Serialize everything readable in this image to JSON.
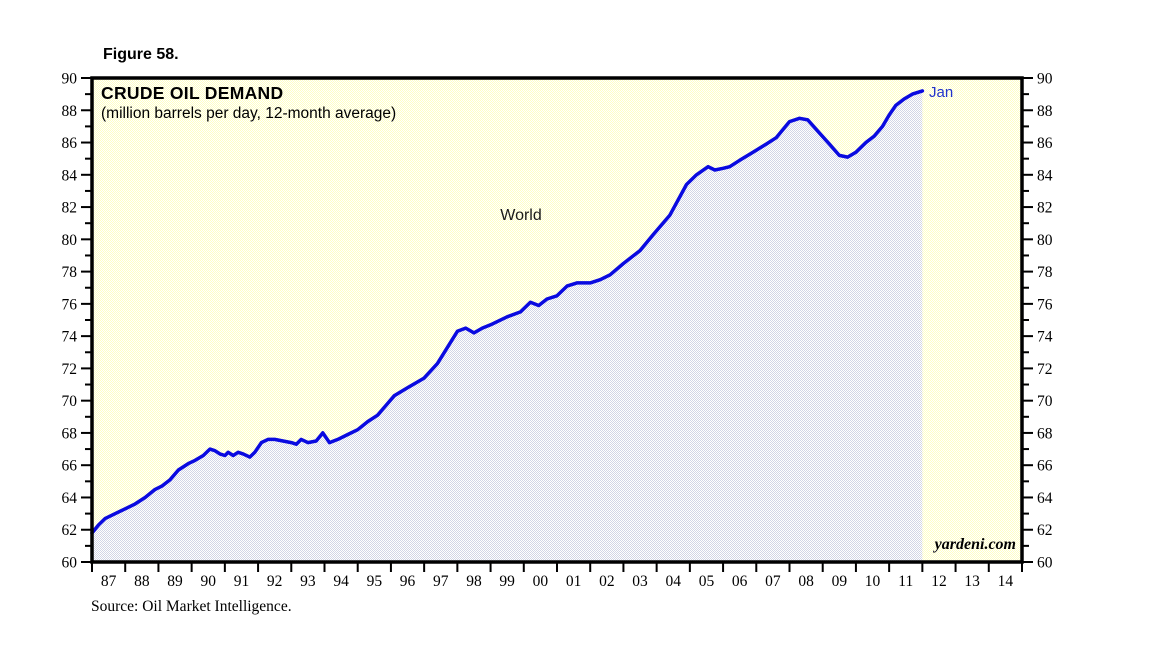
{
  "figure_label": "Figure 58.",
  "chart": {
    "title": "CRUDE OIL DEMAND",
    "subtitle": "(million barrels per day, 12-month average)",
    "series_label": "World",
    "end_point_label": "Jan",
    "watermark": "yardeni.com"
  },
  "source_note": "Source: Oil Market Intelligence.",
  "colors": {
    "line": "#0a0ae0",
    "end_label_blue": "#2233cc",
    "plot_bg_dot": "#ffffc4",
    "area_dot": "#d2d5e6",
    "axis_black": "#000000"
  },
  "chart_data": {
    "type": "area",
    "title": "CRUDE OIL DEMAND",
    "subtitle": "(million barrels per day, 12-month average)",
    "xlabel": "",
    "ylabel": "",
    "xlim": [
      1987,
      2015
    ],
    "ylim": [
      60,
      90
    ],
    "grid": false,
    "legend_position": "none",
    "y_tick_values": [
      60,
      62,
      64,
      66,
      68,
      70,
      72,
      74,
      76,
      78,
      80,
      82,
      84,
      86,
      88,
      90
    ],
    "y_minor_tick_values": [
      61,
      63,
      65,
      67,
      69,
      71,
      73,
      75,
      77,
      79,
      81,
      83,
      85,
      87,
      89
    ],
    "x_tick_labels": [
      "87",
      "88",
      "89",
      "90",
      "91",
      "92",
      "93",
      "94",
      "95",
      "96",
      "97",
      "98",
      "99",
      "00",
      "01",
      "02",
      "03",
      "04",
      "05",
      "06",
      "07",
      "08",
      "09",
      "10",
      "11",
      "12",
      "13",
      "14"
    ],
    "data_end_x": 2012.0,
    "annotation": {
      "x": 2012.0,
      "y": 89.2,
      "label": "Jan"
    },
    "series": [
      {
        "name": "World",
        "x": [
          1987.0,
          1987.2,
          1987.4,
          1987.7,
          1988.0,
          1988.3,
          1988.6,
          1988.9,
          1989.1,
          1989.35,
          1989.6,
          1989.9,
          1990.1,
          1990.35,
          1990.55,
          1990.7,
          1990.85,
          1991.0,
          1991.1,
          1991.25,
          1991.4,
          1991.55,
          1991.75,
          1991.9,
          1992.1,
          1992.3,
          1992.5,
          1992.75,
          1993.0,
          1993.15,
          1993.3,
          1993.5,
          1993.75,
          1993.95,
          1994.15,
          1994.4,
          1994.7,
          1995.0,
          1995.3,
          1995.6,
          1995.85,
          1996.1,
          1996.5,
          1997.0,
          1997.4,
          1997.7,
          1998.0,
          1998.25,
          1998.5,
          1998.75,
          1999.0,
          1999.5,
          1999.9,
          2000.2,
          2000.45,
          2000.7,
          2001.0,
          2001.3,
          2001.6,
          2002.0,
          2002.3,
          2002.6,
          2003.0,
          2003.5,
          2003.9,
          2004.4,
          2004.9,
          2005.2,
          2005.55,
          2005.75,
          2006.0,
          2006.2,
          2006.5,
          2006.9,
          2007.3,
          2007.6,
          2008.0,
          2008.3,
          2008.55,
          2008.9,
          2009.2,
          2009.5,
          2009.75,
          2010.0,
          2010.3,
          2010.55,
          2010.8,
          2011.0,
          2011.2,
          2011.45,
          2011.7,
          2012.0
        ],
        "y": [
          61.8,
          62.3,
          62.7,
          63.0,
          63.3,
          63.6,
          64.0,
          64.5,
          64.7,
          65.1,
          65.7,
          66.1,
          66.3,
          66.6,
          67.0,
          66.9,
          66.7,
          66.6,
          66.8,
          66.6,
          66.8,
          66.7,
          66.5,
          66.8,
          67.4,
          67.6,
          67.6,
          67.5,
          67.4,
          67.3,
          67.6,
          67.4,
          67.5,
          68.0,
          67.4,
          67.6,
          67.9,
          68.2,
          68.7,
          69.1,
          69.7,
          70.3,
          70.8,
          71.4,
          72.3,
          73.3,
          74.3,
          74.5,
          74.2,
          74.5,
          74.7,
          75.2,
          75.5,
          76.1,
          75.9,
          76.3,
          76.5,
          77.1,
          77.3,
          77.3,
          77.5,
          77.8,
          78.5,
          79.3,
          80.3,
          81.5,
          83.4,
          84.0,
          84.5,
          84.3,
          84.4,
          84.5,
          84.9,
          85.4,
          85.9,
          86.3,
          87.3,
          87.5,
          87.4,
          86.6,
          85.9,
          85.2,
          85.1,
          85.4,
          86.0,
          86.4,
          87.0,
          87.7,
          88.3,
          88.7,
          89.0,
          89.2
        ]
      }
    ]
  }
}
